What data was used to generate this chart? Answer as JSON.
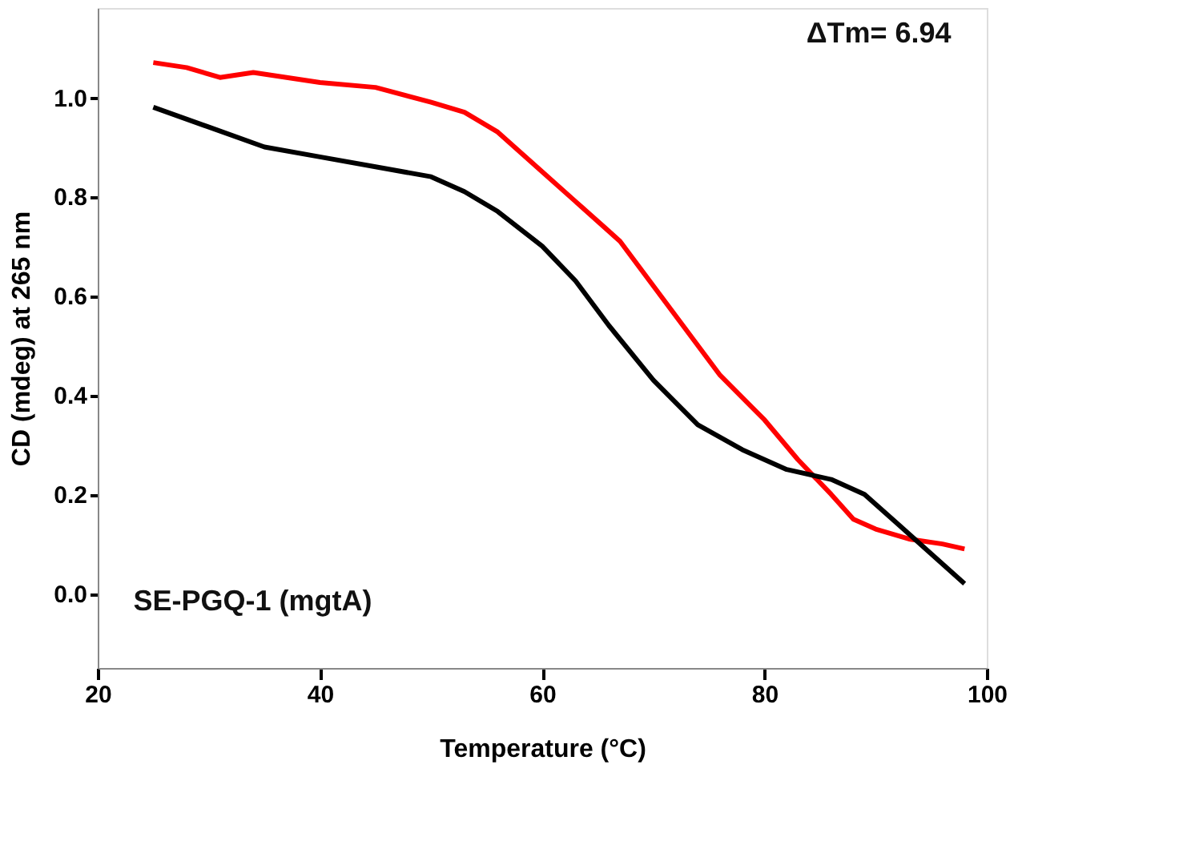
{
  "chart_data": {
    "type": "line",
    "xlabel": "Temperature (°C)",
    "ylabel": "CD (mdeg) at 265 nm",
    "xlim": [
      20,
      100
    ],
    "xticks": [
      20,
      40,
      60,
      80,
      100
    ],
    "ylim": [
      -0.15,
      1.18
    ],
    "yticks": [
      {
        "value": 0,
        "label": "0.0"
      },
      0.2,
      0.4,
      0.6,
      0.8,
      {
        "value": 1,
        "label": "1.0"
      }
    ],
    "grid": false,
    "marker": "none",
    "line_style": "solid",
    "annotations": [
      {
        "text": "ΔTm= 6.94"
      },
      {
        "text": "SE-PGQ-1 (mgtA)"
      }
    ],
    "series": [
      {
        "color": "#ff0000",
        "x": [
          25,
          28,
          31,
          34,
          37,
          40,
          45,
          50,
          53,
          56,
          60,
          63,
          67,
          70,
          73,
          76,
          80,
          83,
          86,
          88,
          90,
          93,
          96,
          98
        ],
        "values": [
          1.07,
          1.06,
          1.04,
          1.05,
          1.04,
          1.03,
          1.02,
          0.99,
          0.97,
          0.93,
          0.85,
          0.79,
          0.71,
          0.62,
          0.53,
          0.44,
          0.35,
          0.27,
          0.2,
          0.15,
          0.13,
          0.11,
          0.1,
          0.09
        ]
      },
      {
        "color": "#000000",
        "x": [
          25,
          30,
          35,
          40,
          45,
          50,
          53,
          56,
          60,
          63,
          66,
          70,
          74,
          78,
          82,
          86,
          89,
          92,
          95,
          98
        ],
        "values": [
          0.98,
          0.94,
          0.9,
          0.88,
          0.86,
          0.84,
          0.81,
          0.77,
          0.7,
          0.63,
          0.54,
          0.43,
          0.34,
          0.29,
          0.25,
          0.23,
          0.2,
          0.14,
          0.08,
          0.02
        ]
      }
    ]
  }
}
